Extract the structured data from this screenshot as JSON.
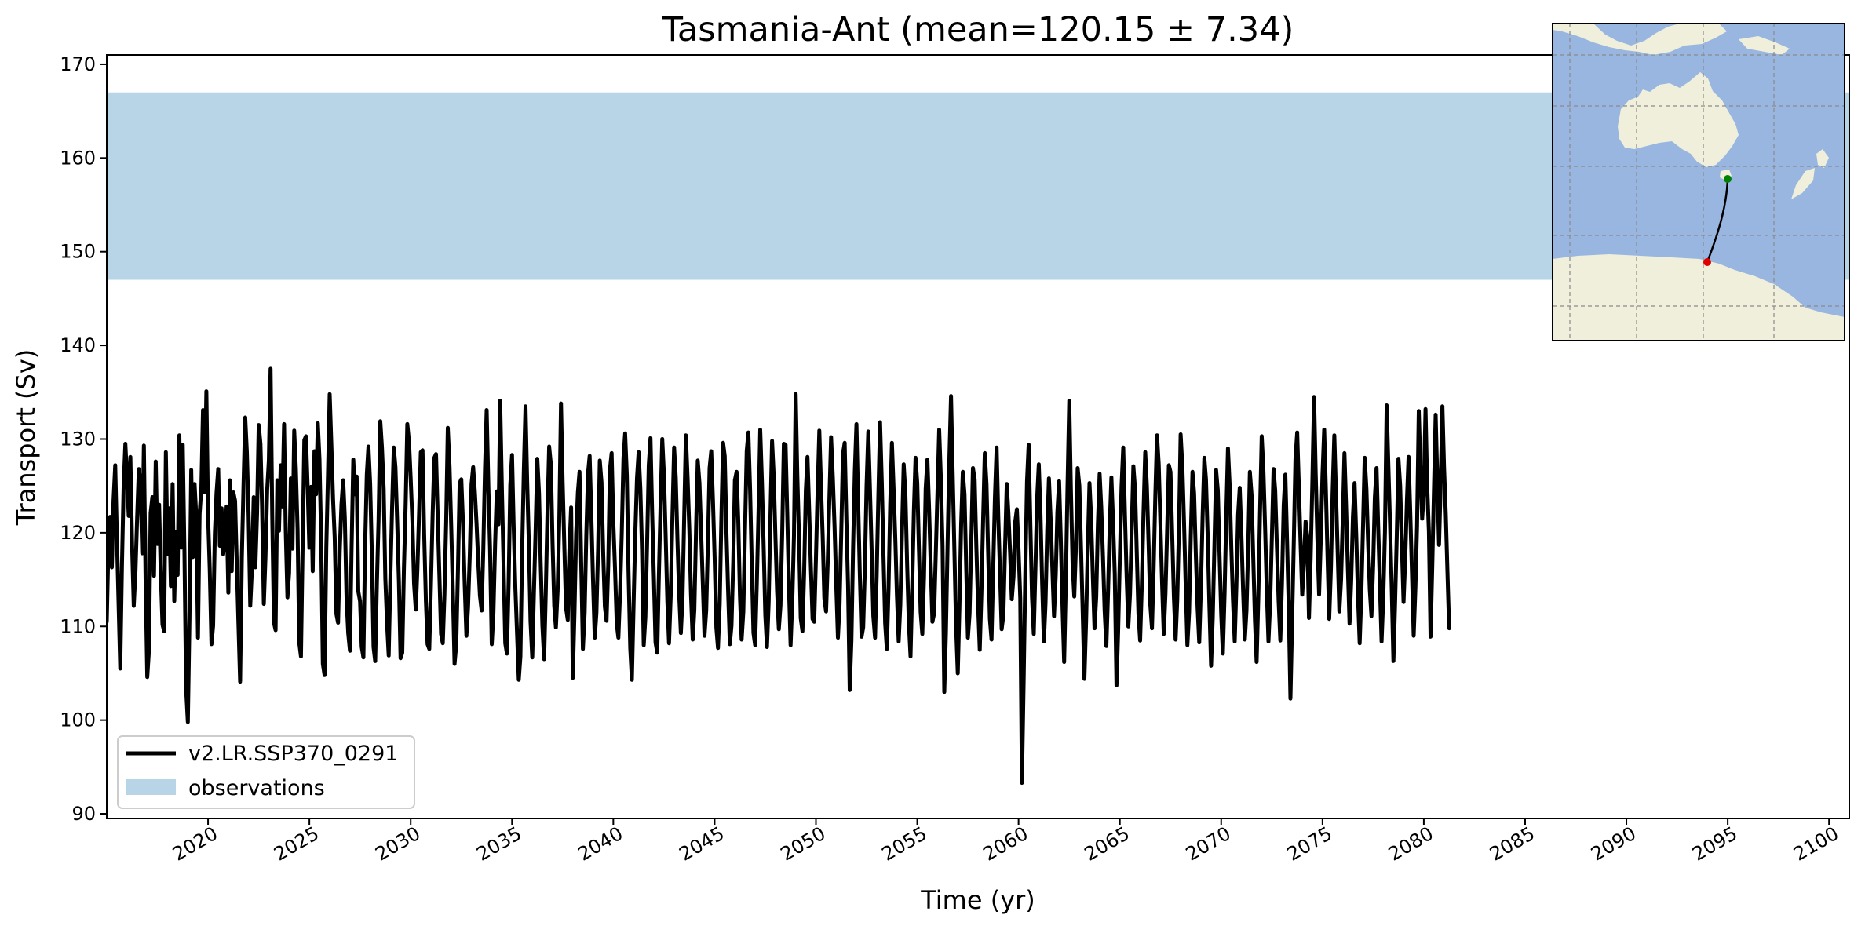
{
  "chart_data": {
    "type": "line",
    "title": "Tasmania-Ant (mean=120.15 ± 7.34)",
    "xlabel": "Time (yr)",
    "ylabel": "Transport (Sv)",
    "xlim": [
      2015,
      2101
    ],
    "ylim": [
      89.5,
      171
    ],
    "xticks": [
      2020,
      2025,
      2030,
      2035,
      2040,
      2045,
      2050,
      2055,
      2060,
      2065,
      2070,
      2075,
      2080,
      2085,
      2090,
      2095,
      2100
    ],
    "yticks": [
      90,
      100,
      110,
      120,
      130,
      140,
      150,
      160,
      170
    ],
    "grid": false,
    "legend_position": "lower-left",
    "observations": {
      "name": "observations",
      "min": 147,
      "max": 167,
      "color": "#b8d4e7"
    },
    "series": [
      {
        "name": "v2.LR.SSP370_0291",
        "color": "#000000",
        "x_start": 2015,
        "x_step": 0.0833333,
        "values": [
          110.5,
          118.9,
          121.7,
          116.3,
          123.4,
          127.2,
          119.6,
          112.4,
          105.5,
          116.7,
          125.0,
          129.5,
          125.9,
          121.8,
          128.1,
          118.6,
          112.2,
          115.9,
          121.6,
          126.8,
          125.4,
          117.8,
          129.3,
          114.9,
          104.6,
          107.5,
          122.1,
          123.8,
          115.4,
          127.6,
          118.8,
          123.0,
          115.7,
          110.2,
          109.5,
          128.6,
          117.7,
          122.6,
          114.3,
          125.2,
          112.7,
          120.1,
          115.5,
          130.4,
          118.4,
          129.4,
          117.8,
          103.3,
          99.8,
          110.9,
          126.7,
          117.4,
          125.2,
          121.8,
          108.8,
          122.0,
          124.8,
          133.1,
          124.3,
          135.1,
          121.7,
          116.1,
          108.1,
          110.1,
          119.9,
          124.2,
          126.8,
          118.6,
          122.6,
          117.7,
          119.5,
          122.8,
          113.6,
          125.6,
          115.9,
          124.3,
          123.4,
          116.8,
          110.2,
          104.1,
          117.4,
          125.0,
          132.3,
          128.6,
          121.9,
          112.2,
          116.2,
          123.8,
          116.3,
          122.1,
          131.5,
          129.5,
          122.7,
          112.4,
          117.4,
          124.6,
          127.7,
          137.5,
          121.9,
          110.4,
          109.6,
          125.6,
          120.2,
          127.2,
          122.8,
          131.6,
          120.3,
          113.1,
          115.7,
          125.8,
          118.3,
          130.9,
          126.9,
          120.4,
          108.3,
          106.8,
          118.4,
          129.9,
          130.3,
          124.7,
          118.4,
          124.9,
          115.9,
          128.7,
          124.1,
          131.7,
          127.9,
          119.1,
          106.0,
          104.8,
          118.4,
          126.0,
          134.8,
          129.5,
          123.6,
          119.5,
          111.3,
          110.4,
          118.2,
          123.0,
          125.6,
          121.6,
          113.0,
          109.3,
          107.4,
          118.3,
          127.8,
          124.1,
          126.0,
          113.7,
          112.7,
          107.8,
          106.7,
          118.4,
          126.2,
          129.2,
          125.2,
          117.9,
          107.8,
          106.3,
          114.7,
          121.4,
          131.9,
          129.1,
          124.7,
          115.1,
          110.3,
          106.9,
          115.4,
          122.6,
          129.1,
          127.0,
          121.2,
          114.8,
          106.6,
          107.2,
          116.2,
          123.0,
          131.6,
          129.7,
          125.8,
          121.2,
          114.6,
          111.8,
          116.2,
          122.4,
          128.6,
          128.8,
          119.8,
          112.7,
          108.1,
          107.6,
          114.3,
          122.0,
          128.0,
          128.4,
          121.9,
          115.4,
          109.2,
          108.2,
          113.4,
          121.1,
          131.2,
          127.1,
          120.8,
          113.6,
          106.0,
          108.1,
          115.9,
          125.3,
          125.7,
          120.9,
          114.5,
          109.0,
          112.1,
          117.6,
          125.2,
          127.0,
          124.3,
          121.0,
          116.8,
          113.3,
          111.7,
          118.2,
          126.9,
          133.1,
          124.8,
          118.3,
          108.1,
          111.4,
          118.9,
          124.4,
          120.9,
          134.1,
          124.7,
          116.7,
          108.2,
          107.1,
          114.7,
          125.1,
          128.3,
          120.7,
          114.0,
          109.3,
          104.3,
          106.8,
          118.0,
          126.5,
          133.5,
          125.5,
          118.7,
          110.5,
          106.7,
          113.6,
          120.4,
          127.9,
          124.2,
          116.8,
          110.1,
          106.5,
          113.6,
          122.3,
          129.2,
          127.3,
          119.0,
          112.2,
          109.9,
          113.8,
          121.2,
          133.8,
          125.4,
          118.4,
          112.0,
          110.7,
          118.2,
          122.7,
          104.5,
          111.6,
          119.9,
          124.3,
          126.5,
          116.5,
          107.6,
          111.4,
          119.6,
          126.3,
          128.2,
          121.7,
          114.9,
          108.8,
          111.4,
          118.4,
          127.7,
          125.4,
          118.0,
          112.1,
          110.6,
          116.6,
          126.7,
          128.5,
          121.2,
          116.2,
          110.3,
          108.8,
          113.7,
          119.9,
          128.0,
          130.6,
          126.1,
          115.9,
          107.7,
          104.3,
          112.4,
          119.8,
          125.8,
          128.6,
          124.7,
          118.2,
          108.0,
          111.0,
          118.8,
          127.2,
          130.1,
          122.2,
          115.3,
          108.3,
          107.2,
          115.5,
          123.2,
          130.0,
          126.1,
          119.8,
          112.7,
          108.2,
          113.3,
          121.5,
          129.1,
          125.9,
          119.1,
          113.5,
          109.3,
          113.0,
          121.9,
          130.4,
          125.8,
          120.3,
          113.4,
          108.6,
          111.8,
          120.5,
          127.7,
          125.3,
          120.1,
          114.5,
          109.0,
          111.7,
          118.6,
          126.9,
          128.7,
          123.4,
          117.4,
          109.9,
          107.7,
          112.4,
          121.5,
          129.6,
          128.2,
          120.0,
          113.8,
          108.1,
          110.1,
          116.8,
          125.6,
          126.5,
          121.4,
          113.2,
          108.6,
          111.6,
          120.2,
          128.7,
          130.7,
          124.6,
          116.7,
          109.3,
          108.0,
          114.7,
          122.1,
          131.0,
          125.4,
          118.8,
          111.2,
          107.8,
          112.6,
          121.4,
          129.8,
          126.1,
          119.5,
          113.7,
          109.7,
          112.2,
          119.9,
          129.5,
          129.4,
          122.2,
          114.2,
          108.0,
          112.8,
          119.7,
          134.8,
          126.0,
          119.3,
          110.9,
          109.5,
          115.6,
          124.5,
          128.1,
          122.3,
          116.4,
          110.8,
          110.5,
          117.3,
          124.4,
          130.9,
          125.1,
          119.6,
          113.0,
          111.6,
          116.8,
          123.9,
          130.2,
          125.9,
          120.7,
          114.6,
          108.8,
          112.3,
          120.2,
          128.4,
          129.6,
          121.7,
          114.4,
          103.2,
          108.5,
          118.3,
          126.5,
          131.6,
          123.2,
          115.6,
          108.9,
          109.9,
          116.4,
          125.0,
          130.8,
          124.7,
          118.0,
          111.1,
          108.8,
          115.5,
          124.2,
          131.8,
          125.4,
          117.7,
          110.3,
          107.6,
          114.1,
          123.0,
          129.6,
          124.8,
          119.4,
          113.3,
          108.4,
          112.3,
          120.3,
          127.3,
          124.1,
          116.6,
          110.5,
          106.8,
          114.0,
          122.4,
          128.0,
          125.3,
          118.3,
          111.5,
          109.2,
          115.3,
          124.7,
          127.8,
          122.7,
          116.4,
          110.5,
          111.4,
          117.8,
          124.5,
          131.0,
          125.7,
          118.6,
          103.0,
          109.3,
          119.0,
          127.6,
          134.6,
          126.4,
          118.1,
          110.1,
          105.0,
          112.1,
          120.9,
          126.5,
          124.1,
          116.5,
          108.8,
          111.3,
          119.0,
          126.9,
          125.7,
          118.7,
          112.5,
          107.5,
          113.5,
          121.5,
          128.5,
          125.2,
          117.9,
          110.8,
          108.6,
          116.4,
          123.7,
          129.1,
          121.7,
          115.7,
          109.7,
          111.2,
          118.3,
          125.2,
          122.1,
          117.8,
          112.9,
          115.3,
          121.1,
          122.5,
          118.3,
          113.0,
          93.3,
          104.1,
          115.5,
          125.5,
          129.4,
          120.8,
          113.1,
          109.2,
          116.1,
          123.7,
          127.3,
          121.9,
          114.6,
          108.4,
          112.5,
          120.4,
          125.8,
          121.5,
          116.2,
          111.1,
          115.5,
          122.2,
          125.5,
          119.4,
          112.2,
          106.2,
          114.8,
          124.9,
          134.1,
          124.6,
          116.6,
          113.2,
          118.7,
          126.9,
          125.0,
          118.4,
          111.4,
          104.4,
          110.6,
          118.4,
          125.3,
          121.6,
          115.2,
          109.8,
          113.2,
          120.9,
          126.3,
          122.7,
          117.4,
          111.7,
          107.9,
          113.5,
          120.8,
          125.9,
          121.0,
          115.6,
          103.7,
          109.5,
          117.4,
          124.9,
          129.1,
          121.8,
          115.4,
          110.0,
          113.4,
          120.4,
          127.1,
          124.6,
          118.0,
          111.3,
          108.5,
          114.5,
          122.1,
          128.6,
          125.0,
          118.8,
          112.4,
          109.8,
          116.1,
          124.1,
          130.4,
          127.3,
          121.1,
          114.6,
          109.2,
          113.5,
          120.2,
          127.2,
          126.5,
          119.7,
          113.2,
          108.6,
          112.8,
          120.6,
          130.5,
          127.1,
          121.2,
          114.3,
          108.0,
          111.5,
          119.5,
          126.5,
          124.2,
          117.6,
          112.0,
          108.3,
          114.3,
          121.7,
          128.0,
          125.7,
          119.6,
          112.4,
          105.8,
          110.9,
          118.8,
          126.7,
          124.5,
          117.8,
          111.4,
          107.1,
          113.5,
          121.7,
          129.0,
          125.2,
          118.3,
          112.8,
          108.4,
          114.2,
          121.9,
          124.8,
          119.6,
          113.8,
          108.6,
          111.7,
          118.6,
          126.5,
          124.0,
          117.4,
          110.6,
          106.2,
          113.2,
          122.0,
          130.3,
          126.8,
          120.6,
          114.0,
          108.4,
          112.6,
          119.4,
          126.8,
          124.5,
          118.4,
          112.8,
          108.5,
          114.6,
          122.9,
          126.2,
          119.1,
          112.1,
          102.3,
          110.5,
          119.1,
          127.9,
          130.7,
          125.0,
          118.9,
          113.4,
          116.8,
          121.2,
          119.6,
          110.9,
          117.4,
          125.3,
          134.5,
          126.3,
          119.1,
          113.4,
          119.4,
          126.1,
          131.0,
          124.7,
          117.4,
          110.8,
          116.3,
          124.2,
          130.4,
          124.3,
          117.9,
          111.6,
          115.0,
          121.5,
          128.5,
          122.6,
          116.4,
          110.3,
          114.8,
          121.7,
          125.3,
          119.6,
          113.3,
          108.2,
          113.4,
          120.8,
          128.0,
          124.7,
          119.1,
          113.9,
          111.1,
          116.6,
          123.7,
          126.9,
          120.6,
          114.3,
          108.4,
          113.2,
          120.1,
          133.6,
          127.3,
          120.9,
          114.2,
          106.3,
          112.4,
          119.8,
          127.9,
          125.0,
          118.8,
          112.6,
          117.2,
          123.4,
          128.1,
          122.0,
          115.8,
          109.0,
          114.1,
          120.7,
          133.0,
          127.0,
          121.5,
          124.3,
          133.2,
          125.0,
          120.1,
          108.9,
          116.5,
          124.5,
          132.6,
          125.6,
          118.7,
          125.2,
          133.5,
          127.0,
          122.0,
          115.9,
          109.8
        ]
      }
    ],
    "inset_map": {
      "region": "Australia and Southern Ocean",
      "ocean_color": "#99b6e0",
      "land_color": "#efefdb",
      "start_marker_color": "#008000",
      "end_marker_color": "#e00000",
      "section_line_color": "#000000"
    }
  },
  "legend": {
    "items": [
      {
        "label": "v2.LR.SSP370_0291",
        "kind": "line",
        "color": "#000000"
      },
      {
        "label": "observations",
        "kind": "patch",
        "color": "#b8d4e7"
      }
    ]
  }
}
